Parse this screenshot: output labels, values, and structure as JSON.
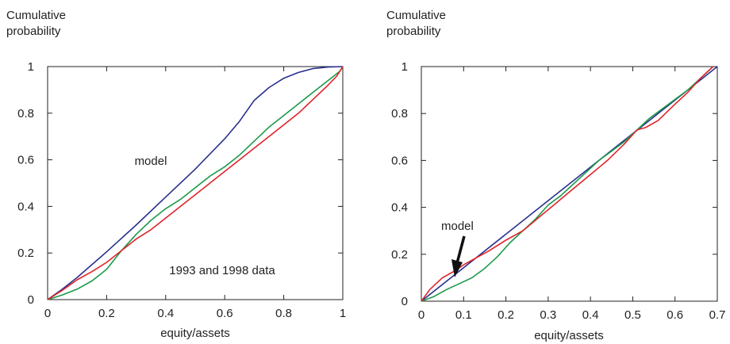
{
  "colors": {
    "model": "#2a2f8f",
    "data_1993": "#1a9a4a",
    "data_1998": "#e0242a",
    "axis": "#222222"
  },
  "chart_data": [
    {
      "type": "line",
      "title": "",
      "ylabel": "Cumulative\nprobability",
      "xlabel": "equity/assets",
      "xlim": [
        0,
        1
      ],
      "ylim": [
        0,
        1
      ],
      "xticks": [
        "0",
        "0.2",
        "0.4",
        "0.6",
        "0.8",
        "1"
      ],
      "yticks": [
        "0",
        "0.2",
        "0.4",
        "0.6",
        "0.8",
        "1"
      ],
      "grid": false,
      "annotations": [
        "model",
        "1993 and 1998 data"
      ],
      "series": [
        {
          "color": "#2a2f8f",
          "x": [
            0,
            0.05,
            0.1,
            0.15,
            0.2,
            0.3,
            0.4,
            0.5,
            0.6,
            0.65,
            0.7,
            0.75,
            0.8,
            0.85,
            0.9,
            0.95,
            1.0
          ],
          "y": [
            0,
            0.045,
            0.095,
            0.15,
            0.205,
            0.32,
            0.44,
            0.56,
            0.69,
            0.765,
            0.855,
            0.91,
            0.95,
            0.975,
            0.992,
            0.998,
            1.0
          ]
        },
        {
          "color": "#1a9a4a",
          "x": [
            0,
            0.05,
            0.1,
            0.15,
            0.2,
            0.25,
            0.3,
            0.35,
            0.4,
            0.45,
            0.5,
            0.55,
            0.6,
            0.65,
            0.7,
            0.75,
            0.8,
            0.85,
            0.9,
            0.95,
            0.99,
            1.0
          ],
          "y": [
            0,
            0.02,
            0.045,
            0.08,
            0.13,
            0.21,
            0.28,
            0.34,
            0.39,
            0.43,
            0.48,
            0.53,
            0.57,
            0.62,
            0.68,
            0.74,
            0.79,
            0.84,
            0.89,
            0.94,
            0.98,
            1.0
          ]
        },
        {
          "color": "#e0242a",
          "x": [
            0,
            0.05,
            0.1,
            0.15,
            0.2,
            0.25,
            0.3,
            0.35,
            0.4,
            0.45,
            0.5,
            0.55,
            0.6,
            0.65,
            0.7,
            0.75,
            0.8,
            0.85,
            0.9,
            0.95,
            0.98,
            1.0
          ],
          "y": [
            0,
            0.04,
            0.085,
            0.12,
            0.16,
            0.21,
            0.26,
            0.3,
            0.35,
            0.4,
            0.45,
            0.5,
            0.55,
            0.6,
            0.65,
            0.7,
            0.75,
            0.8,
            0.86,
            0.92,
            0.96,
            1.0
          ]
        }
      ]
    },
    {
      "type": "line",
      "title": "",
      "ylabel": "Cumulative\nprobability",
      "xlabel": "equity/assets",
      "xlim": [
        0,
        0.7
      ],
      "ylim": [
        0,
        1
      ],
      "xticks": [
        "0",
        "0.1",
        "0.2",
        "0.3",
        "0.4",
        "0.5",
        "0.6",
        "0.7"
      ],
      "yticks": [
        "0",
        "0.2",
        "0.4",
        "0.6",
        "0.8",
        "1"
      ],
      "grid": false,
      "annotations": [
        "model"
      ],
      "series": [
        {
          "color": "#2a2f8f",
          "x": [
            0,
            0.7
          ],
          "y": [
            0,
            1.0
          ]
        },
        {
          "color": "#1a9a4a",
          "x": [
            0,
            0.03,
            0.06,
            0.09,
            0.12,
            0.15,
            0.18,
            0.21,
            0.24,
            0.27,
            0.3,
            0.33,
            0.36,
            0.39,
            0.42,
            0.45,
            0.48,
            0.51,
            0.54,
            0.57,
            0.6,
            0.63,
            0.66,
            0.69
          ],
          "y": [
            0,
            0.02,
            0.05,
            0.075,
            0.1,
            0.14,
            0.19,
            0.25,
            0.3,
            0.35,
            0.41,
            0.45,
            0.5,
            0.55,
            0.6,
            0.64,
            0.68,
            0.73,
            0.78,
            0.82,
            0.86,
            0.9,
            0.95,
            1.0
          ]
        },
        {
          "color": "#e0242a",
          "x": [
            0,
            0.02,
            0.05,
            0.08,
            0.1,
            0.13,
            0.16,
            0.2,
            0.24,
            0.28,
            0.32,
            0.36,
            0.4,
            0.44,
            0.48,
            0.51,
            0.53,
            0.56,
            0.6,
            0.63,
            0.66,
            0.69
          ],
          "y": [
            0,
            0.05,
            0.1,
            0.13,
            0.155,
            0.185,
            0.215,
            0.26,
            0.3,
            0.36,
            0.42,
            0.48,
            0.54,
            0.6,
            0.67,
            0.73,
            0.74,
            0.77,
            0.84,
            0.89,
            0.95,
            1.0
          ]
        }
      ]
    }
  ]
}
